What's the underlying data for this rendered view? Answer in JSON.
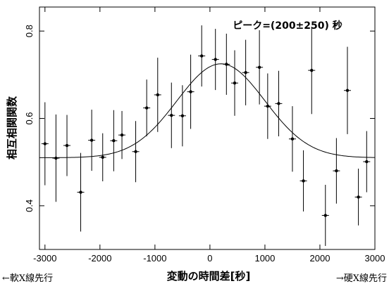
{
  "chart_data": {
    "type": "scatter",
    "xlabel": "変動の時間差[秒]",
    "ylabel": "相互相関関数",
    "annotation": "ピーク=(200±250) 秒",
    "left_note": "←軟X線先行",
    "right_note": "→硬X線先行",
    "xlim": [
      -3100,
      3000
    ],
    "ylim": [
      0.3,
      0.855
    ],
    "x_ticks": [
      -3000,
      -2000,
      -1000,
      0,
      1000,
      2000,
      3000
    ],
    "x_tick_labels": [
      "-3000",
      "-2000",
      "-1000",
      "0",
      "1000",
      "2000",
      "3000"
    ],
    "y_ticks": [
      0.4,
      0.6,
      0.8
    ],
    "y_tick_labels": [
      "0.4",
      "0.6",
      "0.8"
    ],
    "grid": false,
    "series": [
      {
        "style": "points-with-error-bars",
        "points": [
          {
            "x": -3000,
            "y": 0.542,
            "err": 0.095
          },
          {
            "x": -2800,
            "y": 0.509,
            "err": 0.1
          },
          {
            "x": -2600,
            "y": 0.538,
            "err": 0.07
          },
          {
            "x": -2350,
            "y": 0.431,
            "err": 0.09
          },
          {
            "x": -2150,
            "y": 0.55,
            "err": 0.07
          },
          {
            "x": -1950,
            "y": 0.511,
            "err": 0.055
          },
          {
            "x": -1750,
            "y": 0.549,
            "err": 0.07
          },
          {
            "x": -1600,
            "y": 0.562,
            "err": 0.055
          },
          {
            "x": -1350,
            "y": 0.524,
            "err": 0.07
          },
          {
            "x": -1150,
            "y": 0.624,
            "err": 0.065
          },
          {
            "x": -950,
            "y": 0.654,
            "err": 0.085
          },
          {
            "x": -700,
            "y": 0.607,
            "err": 0.075
          },
          {
            "x": -500,
            "y": 0.606,
            "err": 0.07
          },
          {
            "x": -350,
            "y": 0.661,
            "err": 0.085
          },
          {
            "x": -150,
            "y": 0.743,
            "err": 0.07
          },
          {
            "x": 100,
            "y": 0.735,
            "err": 0.07
          },
          {
            "x": 300,
            "y": 0.724,
            "err": 0.07
          },
          {
            "x": 450,
            "y": 0.681,
            "err": 0.075
          },
          {
            "x": 650,
            "y": 0.705,
            "err": 0.075
          },
          {
            "x": 900,
            "y": 0.717,
            "err": 0.085
          },
          {
            "x": 1050,
            "y": 0.628,
            "err": 0.075
          },
          {
            "x": 1250,
            "y": 0.634,
            "err": 0.075
          },
          {
            "x": 1500,
            "y": 0.553,
            "err": 0.075
          },
          {
            "x": 1700,
            "y": 0.457,
            "err": 0.07
          },
          {
            "x": 1850,
            "y": 0.71,
            "err": 0.1
          },
          {
            "x": 2100,
            "y": 0.378,
            "err": 0.07
          },
          {
            "x": 2300,
            "y": 0.48,
            "err": 0.075
          },
          {
            "x": 2500,
            "y": 0.664,
            "err": 0.1
          },
          {
            "x": 2700,
            "y": 0.42,
            "err": 0.065
          },
          {
            "x": 2850,
            "y": 0.501,
            "err": 0.07
          }
        ]
      },
      {
        "style": "gaussian-fit",
        "baseline": 0.51,
        "amplitude": 0.215,
        "center": 200,
        "sigma": 800
      }
    ]
  }
}
